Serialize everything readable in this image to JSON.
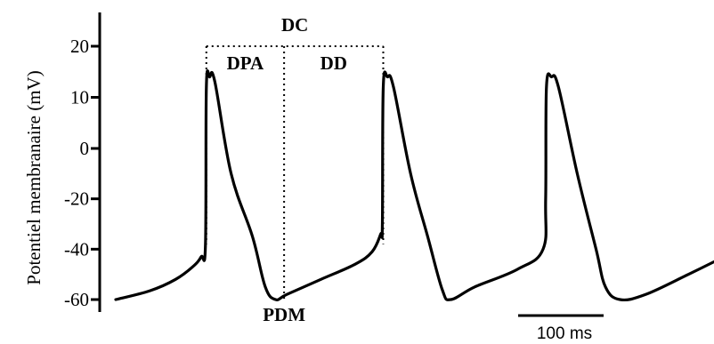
{
  "chart_data": {
    "type": "line",
    "title": "",
    "xlabel": "",
    "ylabel": "Potentiel membranaire (mV)",
    "yticks": [
      20,
      10,
      0,
      -20,
      -40,
      -60
    ],
    "ytick_labels": [
      "20",
      "10",
      "0",
      "-20",
      "-40",
      "-60"
    ],
    "ylim": [
      -62,
      20
    ],
    "xlim": [
      0,
      700
    ],
    "x_unit": "ms",
    "grid": false,
    "scale_bar": {
      "length": 100,
      "label": "100 ms"
    },
    "series": [
      {
        "values": [
          [
            0,
            -60
          ],
          [
            40,
            -56.5
          ],
          [
            70,
            -52
          ],
          [
            90,
            -47
          ],
          [
            100,
            -43
          ],
          [
            105,
            -38
          ],
          [
            106,
            12
          ],
          [
            110,
            14
          ],
          [
            116,
            13
          ],
          [
            135,
            -10
          ],
          [
            160,
            -35
          ],
          [
            175,
            -55
          ],
          [
            187,
            -60
          ],
          [
            200,
            -58
          ],
          [
            240,
            -52
          ],
          [
            280,
            -46
          ],
          [
            300,
            -41
          ],
          [
            310,
            -34
          ],
          [
            312,
            -30
          ],
          [
            313,
            12
          ],
          [
            318,
            14
          ],
          [
            325,
            12
          ],
          [
            345,
            -10
          ],
          [
            365,
            -35
          ],
          [
            382,
            -56
          ],
          [
            392,
            -60
          ],
          [
            420,
            -55
          ],
          [
            470,
            -48
          ],
          [
            500,
            -40
          ],
          [
            503,
            -20
          ],
          [
            504,
            12
          ],
          [
            510,
            14
          ],
          [
            518,
            12
          ],
          [
            540,
            -10
          ],
          [
            562,
            -40
          ],
          [
            573,
            -55
          ],
          [
            590,
            -60
          ],
          [
            620,
            -58
          ],
          [
            670,
            -50
          ],
          [
            700,
            -45
          ]
        ]
      }
    ],
    "annotations": [
      {
        "label": "DC",
        "x_range": [
          106,
          313
        ],
        "y": 20,
        "style": "dotted-bracket"
      },
      {
        "label": "DPA",
        "x_range": [
          106,
          197
        ]
      },
      {
        "label": "DD",
        "x_range": [
          197,
          313
        ]
      },
      {
        "label": "PDM",
        "x": 197,
        "y": -60
      }
    ],
    "dotted_guides": [
      {
        "x": 106,
        "y_range": [
          -38,
          20
        ]
      },
      {
        "x": 197,
        "y_range": [
          -60,
          20
        ]
      },
      {
        "x": 313,
        "y_range": [
          -38,
          20
        ]
      }
    ]
  }
}
